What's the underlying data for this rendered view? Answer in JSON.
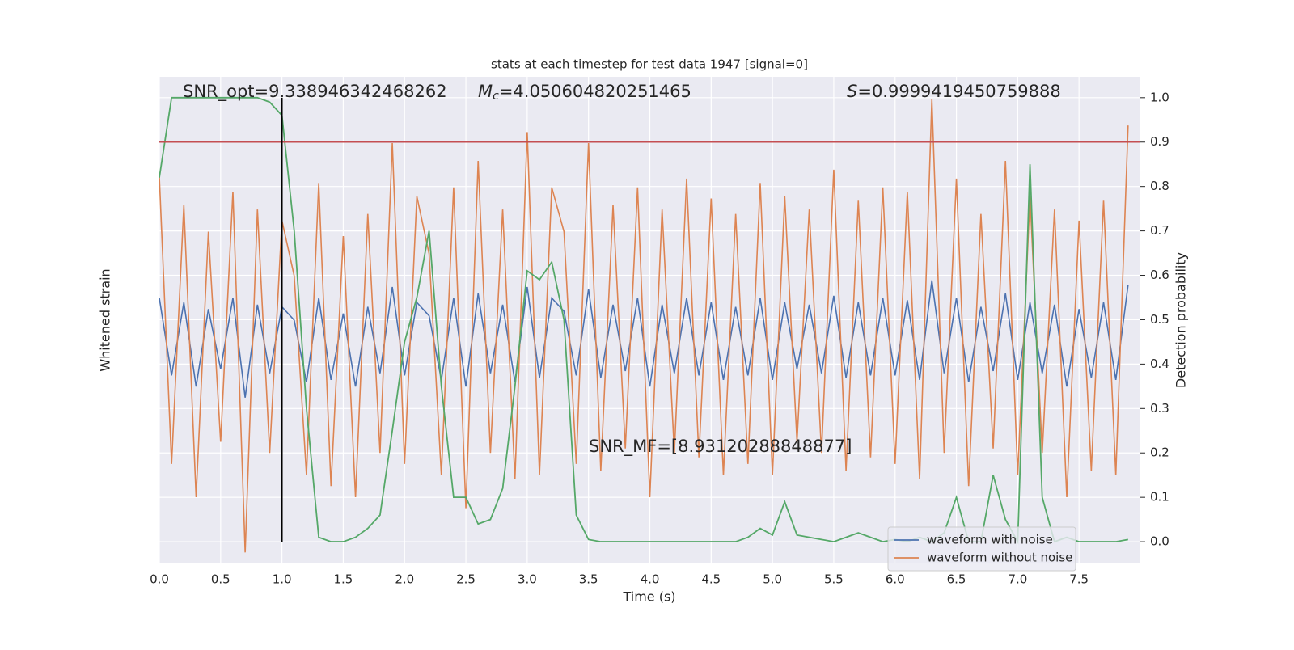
{
  "chart_data": {
    "type": "line",
    "title": "stats at each timestep for test data 1947 [signal=0]",
    "xlabel": "Time (s)",
    "ylabel": "Whitened strain",
    "y2label": "Detection probability",
    "xlim": [
      0,
      8
    ],
    "ylim": [
      -1,
      1.2
    ],
    "y2lim": [
      -0.049,
      1.047
    ],
    "xticks": [
      {
        "value": 0,
        "label": "0.0"
      },
      {
        "value": 0.5,
        "label": "0.5"
      },
      {
        "value": 1,
        "label": "1.0"
      },
      {
        "value": 1.5,
        "label": "1.5"
      },
      {
        "value": 2,
        "label": "2.0"
      },
      {
        "value": 2.5,
        "label": "2.5"
      },
      {
        "value": 3,
        "label": "3.0"
      },
      {
        "value": 3.5,
        "label": "3.5"
      },
      {
        "value": 4,
        "label": "4.0"
      },
      {
        "value": 4.5,
        "label": "4.5"
      },
      {
        "value": 5,
        "label": "5.0"
      },
      {
        "value": 5.5,
        "label": "5.5"
      },
      {
        "value": 6,
        "label": "6.0"
      },
      {
        "value": 6.5,
        "label": "6.5"
      },
      {
        "value": 7,
        "label": "7.0"
      },
      {
        "value": 7.5,
        "label": "7.5"
      }
    ],
    "y2ticks": [
      {
        "value": 0,
        "label": "0.0"
      },
      0.1,
      0.2,
      0.3,
      0.4,
      0.5,
      0.6,
      0.7,
      0.8,
      0.9,
      {
        "value": 1,
        "label": "1.0"
      }
    ],
    "grid": true,
    "legend": "lower right",
    "x": [
      0,
      0.1,
      0.2,
      0.3,
      0.4,
      0.5,
      0.6,
      0.7,
      0.8,
      0.9,
      1,
      1.1,
      1.2,
      1.3,
      1.4,
      1.5,
      1.6,
      1.7,
      1.8,
      1.9,
      2,
      2.1,
      2.2,
      2.3,
      2.4,
      2.5,
      2.6,
      2.7,
      2.8,
      2.9,
      3,
      3.1,
      3.2,
      3.3,
      3.4,
      3.5,
      3.6,
      3.7,
      3.8,
      3.9,
      4,
      4.1,
      4.2,
      4.3,
      4.4,
      4.5,
      4.6,
      4.7,
      4.8,
      4.9,
      5,
      5.1,
      5.2,
      5.3,
      5.4,
      5.5,
      5.6,
      5.7,
      5.8,
      5.9,
      6,
      6.1,
      6.2,
      6.3,
      6.4,
      6.5,
      6.6,
      6.7,
      6.8,
      6.9,
      7,
      7.1,
      7.2,
      7.3,
      7.4,
      7.5,
      7.6,
      7.7,
      7.8,
      7.9
    ],
    "series": [
      {
        "name": "waveform with noise",
        "color": "#4c72b0",
        "values": [
          0.2,
          -0.15,
          0.18,
          -0.2,
          0.15,
          -0.12,
          0.2,
          -0.25,
          0.17,
          -0.14,
          0.16,
          0.1,
          -0.18,
          0.2,
          -0.17,
          0.13,
          -0.2,
          0.16,
          -0.14,
          0.25,
          -0.15,
          0.18,
          0.12,
          -0.17,
          0.2,
          -0.2,
          0.22,
          -0.14,
          0.17,
          -0.18,
          0.25,
          -0.16,
          0.2,
          0.14,
          -0.15,
          0.24,
          -0.16,
          0.17,
          -0.13,
          0.2,
          -0.2,
          0.17,
          -0.14,
          0.2,
          -0.15,
          0.18,
          -0.17,
          0.16,
          -0.15,
          0.2,
          -0.17,
          0.18,
          -0.12,
          0.17,
          -0.14,
          0.21,
          -0.16,
          0.18,
          -0.15,
          0.2,
          -0.15,
          0.19,
          -0.17,
          0.28,
          -0.14,
          0.2,
          -0.18,
          0.16,
          -0.13,
          0.22,
          -0.17,
          0.18,
          -0.14,
          0.17,
          -0.2,
          0.15,
          -0.16,
          0.18,
          -0.17,
          0.26
        ]
      },
      {
        "name": "waveform without noise",
        "color": "#dd8452",
        "values": [
          0.75,
          -0.55,
          0.62,
          -0.7,
          0.5,
          -0.45,
          0.68,
          -0.95,
          0.6,
          -0.5,
          0.55,
          0.3,
          -0.6,
          0.72,
          -0.65,
          0.48,
          -0.7,
          0.58,
          -0.5,
          0.9,
          -0.55,
          0.66,
          0.4,
          -0.6,
          0.7,
          -0.75,
          0.82,
          -0.5,
          0.6,
          -0.62,
          0.95,
          -0.6,
          0.7,
          0.5,
          -0.55,
          0.9,
          -0.58,
          0.62,
          -0.48,
          0.7,
          -0.7,
          0.6,
          -0.5,
          0.74,
          -0.52,
          0.65,
          -0.6,
          0.58,
          -0.55,
          0.72,
          -0.6,
          0.66,
          -0.45,
          0.6,
          -0.5,
          0.78,
          -0.58,
          0.64,
          -0.52,
          0.7,
          -0.55,
          0.68,
          -0.62,
          1.1,
          -0.5,
          0.74,
          -0.65,
          0.58,
          -0.48,
          0.82,
          -0.6,
          0.66,
          -0.5,
          0.6,
          -0.7,
          0.55,
          -0.58,
          0.64,
          -0.6,
          0.98
        ]
      }
    ],
    "probability": {
      "axis": "y2",
      "color": "#55a868",
      "values": [
        0.82,
        1,
        1,
        1,
        1,
        1,
        1,
        1,
        1,
        0.99,
        0.96,
        0.7,
        0.3,
        0.01,
        0,
        0,
        0.01,
        0.03,
        0.06,
        0.25,
        0.45,
        0.55,
        0.7,
        0.35,
        0.1,
        0.1,
        0.04,
        0.05,
        0.12,
        0.35,
        0.61,
        0.59,
        0.63,
        0.5,
        0.06,
        0.005,
        0,
        0,
        0,
        0,
        0,
        0,
        0,
        0,
        0,
        0,
        0,
        0,
        0.01,
        0.03,
        0.015,
        0.09,
        0.015,
        0.01,
        0.005,
        0,
        0.01,
        0.02,
        0.01,
        0,
        0.005,
        0,
        0.01,
        0,
        0.02,
        0.1,
        0,
        0,
        0.15,
        0.05,
        0,
        0.85,
        0.1,
        0,
        0.01,
        0,
        0,
        0,
        0,
        0.005
      ]
    },
    "threshold": {
      "value": 0.9,
      "color": "#c44e52"
    },
    "marker_x": {
      "value": 1,
      "color": "#000000"
    },
    "annotations": {
      "snr_opt": "SNR_opt=9.338946342468262",
      "mc": {
        "symbol": "M",
        "subscript": "c",
        "text": "=4.050604820251465"
      },
      "s": {
        "symbol": "S",
        "text": "=0.9999419450759888"
      },
      "snr_mf": "SNR_MF=[8.93120288848877]"
    }
  }
}
